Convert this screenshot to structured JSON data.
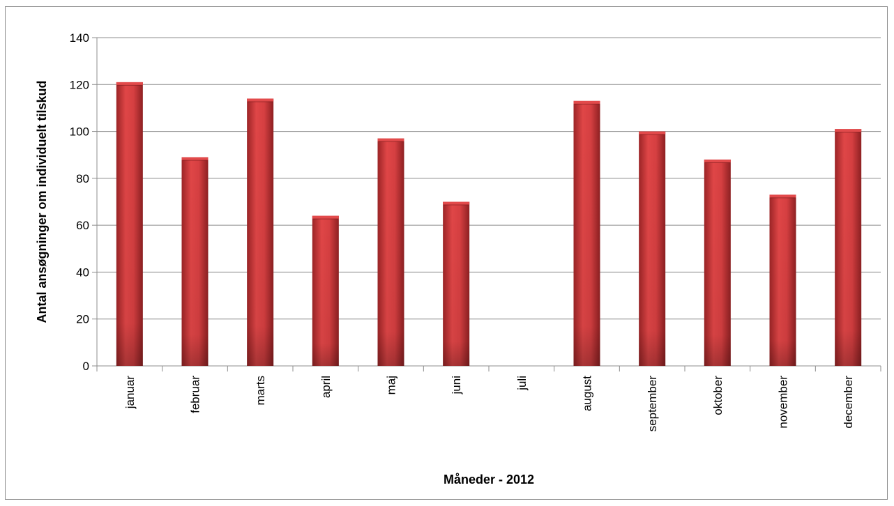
{
  "chart_data": {
    "type": "bar",
    "title": "",
    "xlabel": "Måneder - 2012",
    "ylabel": "Antal ansøgninger om individuelt tilskud",
    "categories": [
      "januar",
      "februar",
      "marts",
      "april",
      "maj",
      "juni",
      "juli",
      "august",
      "september",
      "oktober",
      "november",
      "december"
    ],
    "values": [
      121,
      89,
      114,
      64,
      97,
      70,
      0,
      113,
      100,
      88,
      73,
      101
    ],
    "ylim": [
      0,
      140
    ],
    "yticks": [
      "0",
      "20",
      "40",
      "60",
      "80",
      "100",
      "120",
      "140"
    ],
    "grid": "horizontal",
    "legend": "none",
    "bar_color": "#c0393b",
    "bar_highlight_color": "#e24a4b",
    "bar_shadow_color": "#7a1a1c"
  }
}
